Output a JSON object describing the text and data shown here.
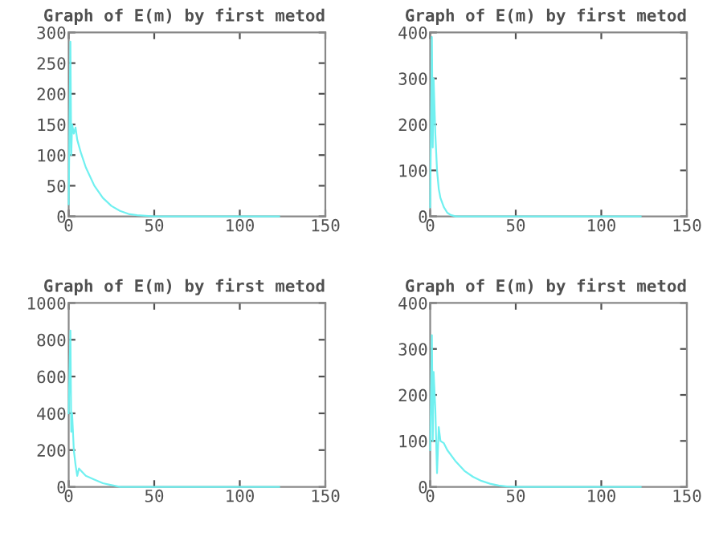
{
  "chart_data": [
    {
      "type": "line",
      "title": "Graph of E(m) by first metod",
      "xlim": [
        0,
        150
      ],
      "xticks": [
        0,
        50,
        100,
        150
      ],
      "ylim": [
        0,
        300
      ],
      "yticks": [
        0,
        50,
        100,
        150,
        200,
        250,
        300
      ],
      "grid": false,
      "series": [
        {
          "color": "#70f0f0",
          "x": [
            0,
            1,
            1.5,
            2,
            3,
            4,
            5,
            7,
            10,
            15,
            20,
            25,
            30,
            35,
            40,
            45,
            50,
            75,
            100,
            123
          ],
          "values": [
            20,
            285,
            100,
            150,
            135,
            145,
            125,
            105,
            80,
            50,
            30,
            17,
            9,
            4,
            2,
            1,
            0,
            0,
            0,
            0
          ]
        }
      ]
    },
    {
      "type": "line",
      "title": "Graph of E(m) by first metod",
      "xlim": [
        0,
        150
      ],
      "xticks": [
        0,
        50,
        100,
        150
      ],
      "ylim": [
        0,
        400
      ],
      "yticks": [
        0,
        100,
        200,
        300,
        400
      ],
      "grid": false,
      "series": [
        {
          "color": "#70f0f0",
          "x": [
            0,
            1,
            1.5,
            2,
            3,
            4,
            5,
            6,
            8,
            10,
            12,
            15,
            50,
            100,
            123
          ],
          "values": [
            20,
            390,
            150,
            300,
            180,
            100,
            60,
            40,
            20,
            8,
            3,
            0,
            0,
            0,
            0
          ]
        }
      ]
    },
    {
      "type": "line",
      "title": "Graph of E(m) by first metod",
      "xlim": [
        0,
        150
      ],
      "xticks": [
        0,
        50,
        100,
        150
      ],
      "ylim": [
        0,
        1000
      ],
      "yticks": [
        0,
        200,
        400,
        600,
        800,
        1000
      ],
      "grid": false,
      "series": [
        {
          "color": "#70f0f0",
          "x": [
            0,
            1,
            1.5,
            2,
            3,
            4,
            5,
            6,
            8,
            10,
            15,
            20,
            25,
            30,
            35,
            40,
            50,
            100,
            123
          ],
          "values": [
            400,
            850,
            300,
            400,
            200,
            120,
            60,
            100,
            80,
            60,
            40,
            20,
            10,
            0,
            0,
            0,
            0,
            0,
            0
          ]
        }
      ]
    },
    {
      "type": "line",
      "title": "Graph of E(m) by first metod",
      "xlim": [
        0,
        150
      ],
      "xticks": [
        0,
        50,
        100,
        150
      ],
      "ylim": [
        0,
        400
      ],
      "yticks": [
        0,
        100,
        200,
        300,
        400
      ],
      "grid": false,
      "series": [
        {
          "color": "#70f0f0",
          "x": [
            0,
            1,
            1.5,
            2,
            3,
            4,
            5,
            6,
            8,
            10,
            15,
            20,
            25,
            30,
            35,
            40,
            45,
            50,
            100,
            123
          ],
          "values": [
            80,
            330,
            100,
            250,
            170,
            30,
            130,
            100,
            95,
            80,
            55,
            35,
            22,
            13,
            7,
            3,
            1,
            0,
            0,
            0
          ]
        }
      ]
    }
  ]
}
